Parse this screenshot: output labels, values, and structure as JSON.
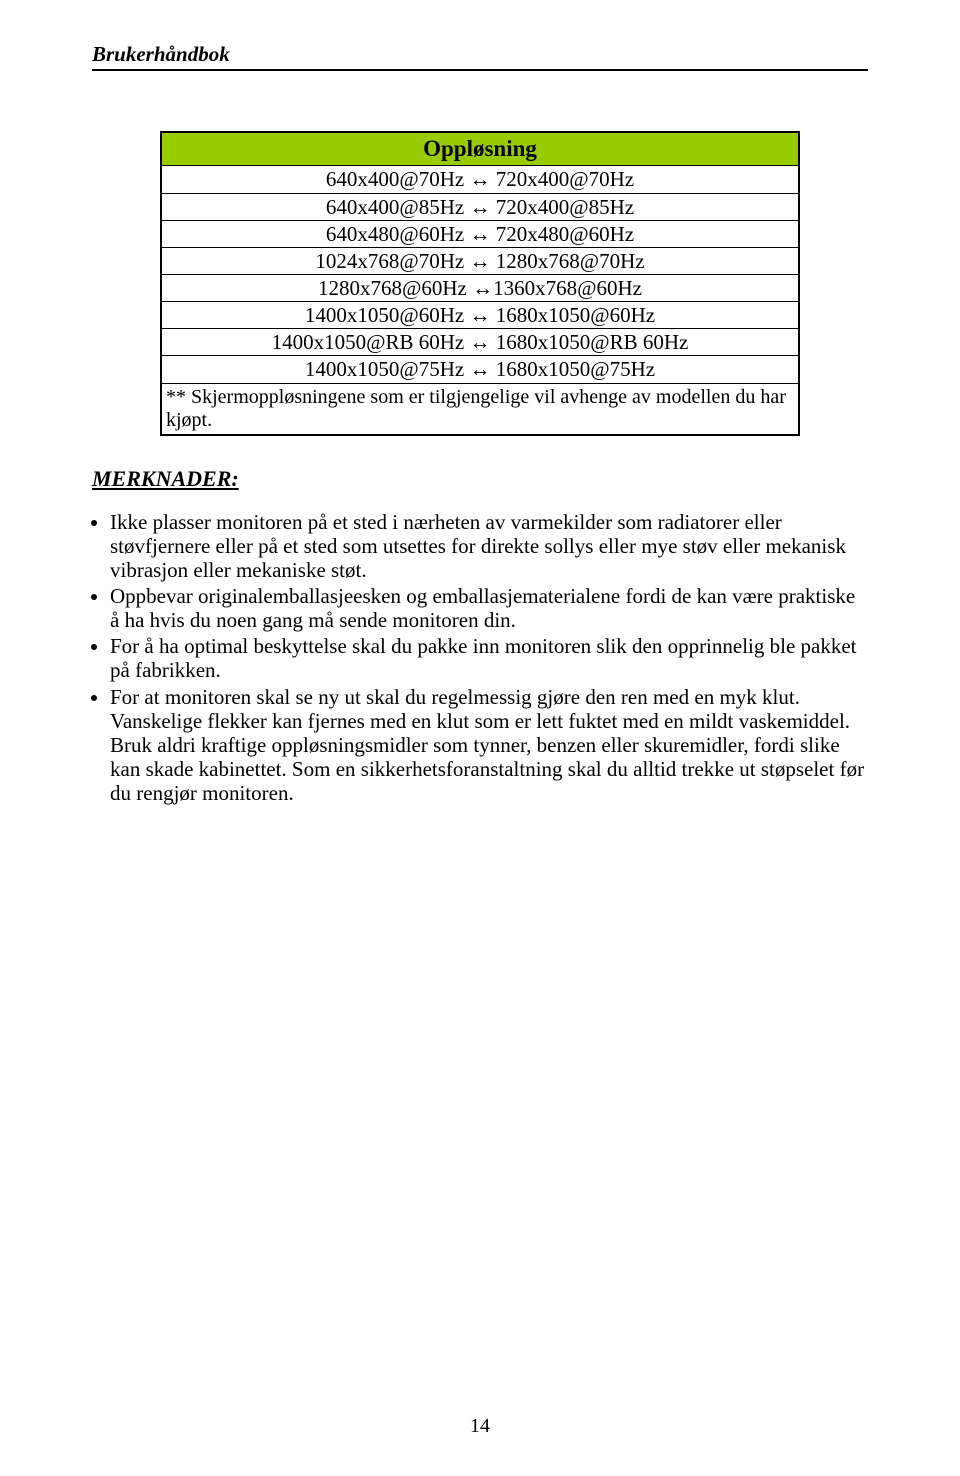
{
  "header": {
    "title": "Brukerhåndbok"
  },
  "table": {
    "header_bg": "#99cc00",
    "header_label": "Oppløsning",
    "rows": [
      "640x400@70Hz ↔ 720x400@70Hz",
      "640x400@85Hz ↔ 720x400@85Hz",
      "640x480@60Hz ↔ 720x480@60Hz",
      "1024x768@70Hz ↔ 1280x768@70Hz",
      "1280x768@60Hz ↔1360x768@60Hz",
      "1400x1050@60Hz ↔ 1680x1050@60Hz",
      "1400x1050@RB 60Hz ↔ 1680x1050@RB 60Hz",
      "1400x1050@75Hz ↔ 1680x1050@75Hz"
    ],
    "note": "** Skjermoppløsningene som er tilgjengelige vil avhenge av modellen du har kjøpt."
  },
  "notes_section": {
    "heading": "MERKNADER:",
    "items": [
      "Ikke plasser monitoren på et sted i nærheten av varmekilder som radiatorer eller støvfjernere eller på et sted som utsettes for direkte sollys eller mye støv eller mekanisk vibrasjon eller mekaniske støt.",
      "Oppbevar originalemballasjeesken og emballasjematerialene fordi de kan være praktiske å ha hvis du noen gang må sende monitoren din.",
      "For å ha optimal beskyttelse skal du pakke inn monitoren slik den opprinnelig ble pakket på fabrikken.",
      "For at monitoren skal se ny ut skal du regelmessig gjøre den ren med en myk klut. Vanskelige flekker kan fjernes med en klut som er lett fuktet med en mildt vaskemiddel. Bruk aldri kraftige oppløsningsmidler som tynner, benzen eller skuremidler, fordi slike kan skade kabinettet. Som en sikkerhetsforanstaltning skal du alltid trekke ut støpselet før du rengjør monitoren."
    ]
  },
  "page_number": "14"
}
